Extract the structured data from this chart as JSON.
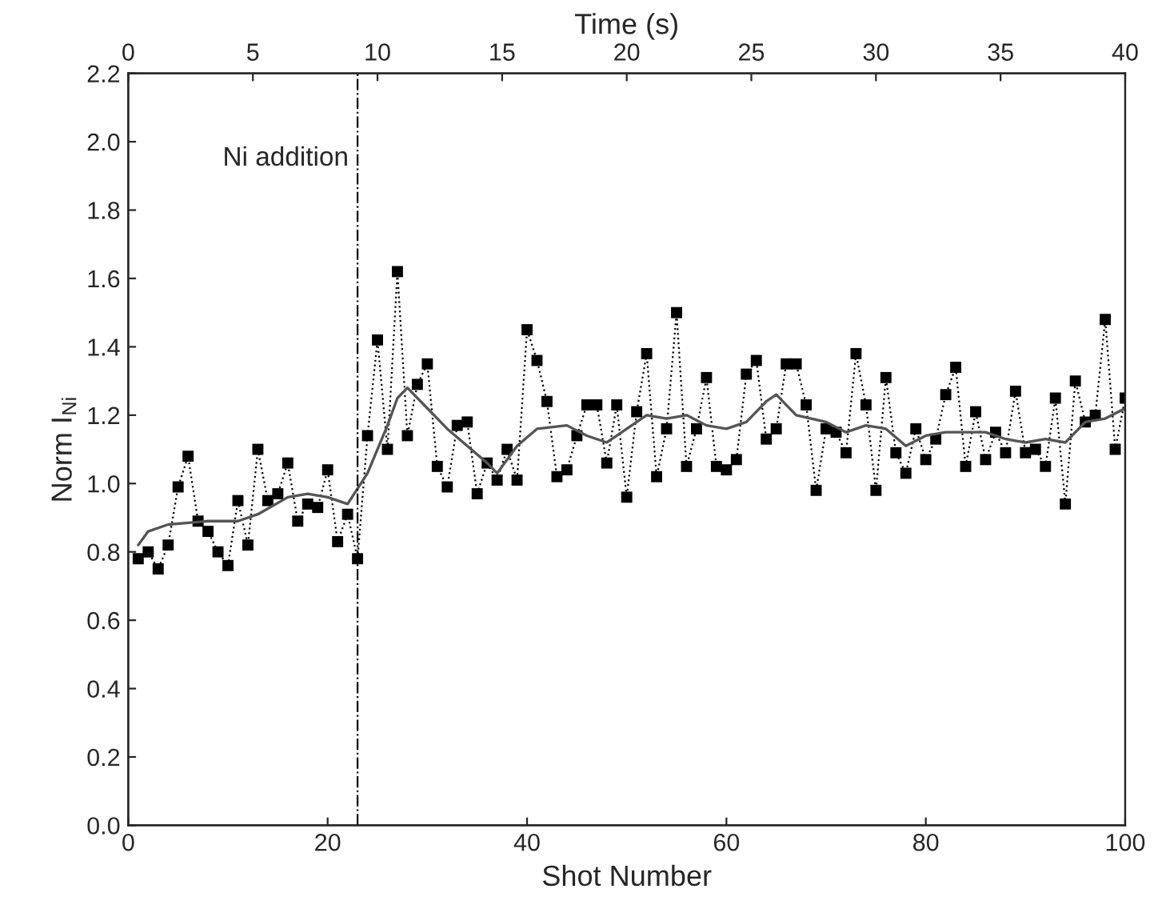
{
  "chart_data": {
    "type": "line",
    "xlabel": "Shot Number",
    "ylabel": "Norm I$_{Ni}$",
    "x2label": "Time (s)",
    "xlim": [
      0,
      100
    ],
    "xticks": [
      0,
      20,
      40,
      60,
      80,
      100
    ],
    "x2lim": [
      0,
      40
    ],
    "x2ticks": [
      0,
      5,
      10,
      15,
      20,
      25,
      30,
      35,
      40
    ],
    "ylim": [
      0,
      2.2
    ],
    "yticks": [
      {
        "value": 0,
        "label": "0.0"
      },
      0.2,
      0.4,
      0.6,
      0.8,
      {
        "value": 1,
        "label": "1.0"
      },
      1.2,
      1.4,
      1.6,
      1.8,
      {
        "value": 2,
        "label": "2.0"
      },
      2.2
    ],
    "grid": false,
    "legend": false,
    "ref_lines": [
      {
        "axis": "x",
        "value": 23,
        "label": "Ni addition",
        "color": "#000000",
        "line_style": "dashdot"
      }
    ],
    "series": [
      {
        "color": "#000000",
        "marker": "square",
        "line_style": "dotted",
        "x": [
          1,
          2,
          3,
          4,
          5,
          6,
          7,
          8,
          9,
          10,
          11,
          12,
          13,
          14,
          15,
          16,
          17,
          18,
          19,
          20,
          21,
          22,
          23,
          24,
          25,
          26,
          27,
          28,
          29,
          30,
          31,
          32,
          33,
          34,
          35,
          36,
          37,
          38,
          39,
          40,
          41,
          42,
          43,
          44,
          45,
          46,
          47,
          48,
          49,
          50,
          51,
          52,
          53,
          54,
          55,
          56,
          57,
          58,
          59,
          60,
          61,
          62,
          63,
          64,
          65,
          66,
          67,
          68,
          69,
          70,
          71,
          72,
          73,
          74,
          75,
          76,
          77,
          78,
          79,
          80,
          81,
          82,
          83,
          84,
          85,
          86,
          87,
          88,
          89,
          90,
          91,
          92,
          93,
          94,
          95,
          96,
          97,
          98,
          99,
          100
        ],
        "values": [
          0.78,
          0.8,
          0.75,
          0.82,
          0.99,
          1.08,
          0.89,
          0.86,
          0.8,
          0.76,
          0.95,
          0.82,
          1.1,
          0.95,
          0.97,
          1.06,
          0.89,
          0.94,
          0.93,
          1.04,
          0.83,
          0.91,
          0.78,
          1.14,
          1.42,
          1.1,
          1.62,
          1.14,
          1.29,
          1.35,
          1.05,
          0.99,
          1.17,
          1.18,
          0.97,
          1.06,
          1.01,
          1.1,
          1.01,
          1.45,
          1.36,
          1.24,
          1.02,
          1.04,
          1.14,
          1.23,
          1.23,
          1.06,
          1.23,
          0.96,
          1.21,
          1.38,
          1.02,
          1.16,
          1.5,
          1.05,
          1.16,
          1.31,
          1.05,
          1.04,
          1.07,
          1.32,
          1.36,
          1.13,
          1.16,
          1.35,
          1.35,
          1.23,
          0.98,
          1.16,
          1.15,
          1.09,
          1.38,
          1.23,
          0.98,
          1.31,
          1.09,
          1.03,
          1.16,
          1.07,
          1.13,
          1.26,
          1.34,
          1.05,
          1.21,
          1.07,
          1.15,
          1.09,
          1.27,
          1.09,
          1.1,
          1.05,
          1.25,
          0.94,
          1.3,
          1.18,
          1.2,
          1.48,
          1.1,
          1.25
        ]
      },
      {
        "color": "#555555",
        "marker": "none",
        "line_style": "solid",
        "x": [
          1,
          2,
          4,
          8,
          11,
          13,
          16,
          18,
          20,
          22,
          24,
          26,
          27,
          28,
          30,
          32,
          34,
          36,
          37,
          39,
          41,
          44,
          46,
          48,
          50,
          52,
          54,
          56,
          58,
          60,
          62,
          64,
          65,
          67,
          70,
          72,
          74,
          76,
          78,
          80,
          82,
          84,
          86,
          88,
          90,
          92,
          94,
          96,
          98,
          100
        ],
        "values": [
          0.82,
          0.86,
          0.88,
          0.89,
          0.89,
          0.91,
          0.96,
          0.97,
          0.96,
          0.94,
          1.03,
          1.17,
          1.25,
          1.28,
          1.22,
          1.16,
          1.11,
          1.06,
          1.03,
          1.11,
          1.16,
          1.17,
          1.14,
          1.12,
          1.16,
          1.2,
          1.19,
          1.2,
          1.17,
          1.16,
          1.18,
          1.24,
          1.26,
          1.2,
          1.18,
          1.15,
          1.17,
          1.16,
          1.11,
          1.14,
          1.15,
          1.15,
          1.15,
          1.13,
          1.12,
          1.13,
          1.12,
          1.18,
          1.19,
          1.22
        ]
      }
    ]
  }
}
